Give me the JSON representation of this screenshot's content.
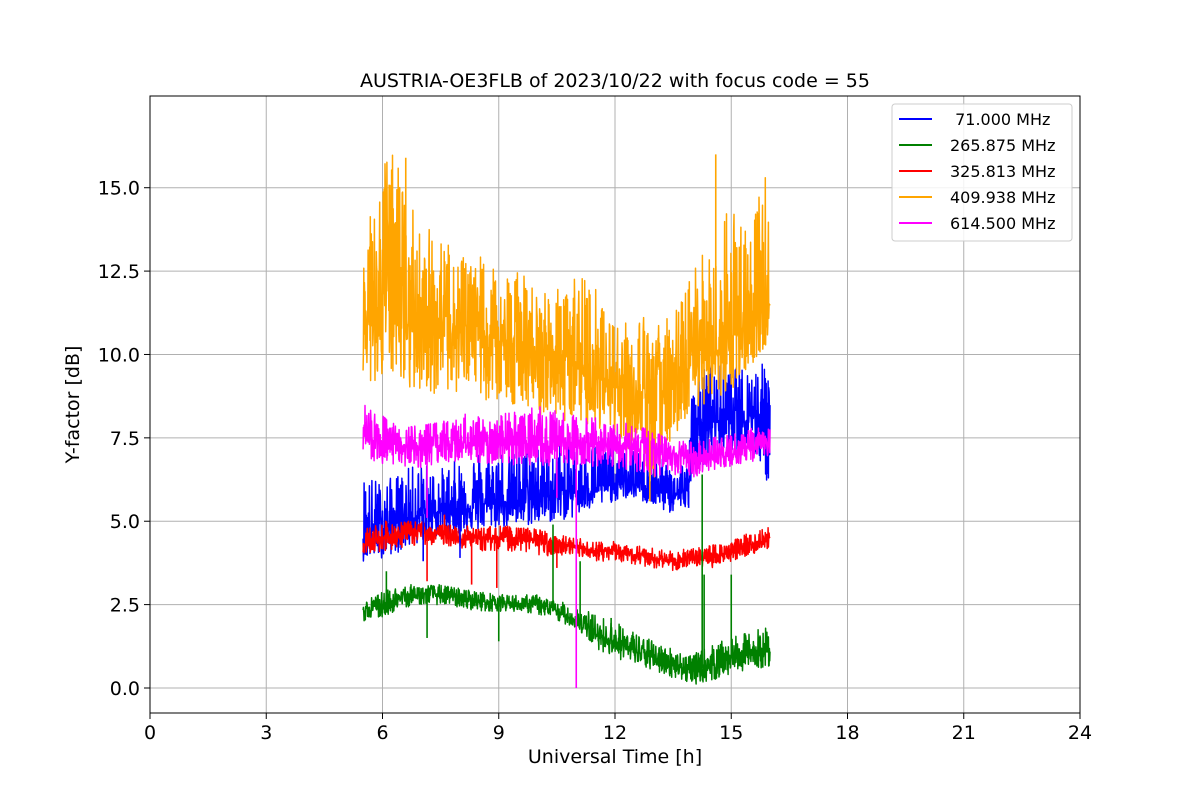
{
  "chart_data": {
    "type": "line",
    "title": "AUSTRIA-OE3FLB of 2023/10/22 with focus code = 55",
    "xlabel": "Universal Time [h]",
    "ylabel": "Y-factor [dB]",
    "xlim": [
      0,
      24
    ],
    "ylim": [
      -0.75,
      17.75
    ],
    "x_ticks": [
      "0",
      "3",
      "6",
      "9",
      "12",
      "15",
      "18",
      "21",
      "24"
    ],
    "x_tick_values": [
      0,
      3,
      6,
      9,
      12,
      15,
      18,
      21,
      24
    ],
    "y_ticks": [
      "0.0",
      "2.5",
      "5.0",
      "7.5",
      "10.0",
      "12.5",
      "15.0"
    ],
    "y_tick_values": [
      0,
      2.5,
      5,
      7.5,
      10,
      12.5,
      15
    ],
    "grid": true,
    "legend_position": "top-right",
    "series": [
      {
        "name": " 71.000 MHz",
        "color": "#0000ff",
        "x": [
          5.5,
          6.0,
          6.5,
          7.0,
          7.5,
          8.0,
          8.5,
          9.0,
          9.5,
          10.0,
          10.5,
          11.0,
          11.5,
          12.0,
          12.5,
          13.0,
          13.5,
          13.9,
          14.0,
          14.5,
          15.0,
          15.5,
          16.0
        ],
        "y": [
          4.6,
          4.8,
          5.0,
          5.2,
          5.3,
          5.4,
          5.5,
          5.6,
          5.6,
          5.7,
          5.8,
          5.9,
          6.0,
          6.1,
          6.1,
          6.0,
          5.8,
          5.9,
          7.8,
          8.0,
          8.1,
          8.2,
          8.3
        ],
        "upper": [
          6.5,
          6.2,
          6.5,
          6.8,
          6.6,
          6.9,
          7.2,
          7.3,
          7.2,
          7.5,
          7.4,
          7.3,
          7.4,
          7.2,
          7.3,
          6.9,
          6.8,
          6.9,
          9.5,
          9.8,
          9.6,
          9.7,
          9.8
        ],
        "lower": [
          3.8,
          3.9,
          4.1,
          4.4,
          4.5,
          4.6,
          4.7,
          4.8,
          4.8,
          4.9,
          5.0,
          5.1,
          5.4,
          5.6,
          5.7,
          5.4,
          5.2,
          5.5,
          6.6,
          6.8,
          7.1,
          7.2,
          5.9
        ]
      },
      {
        "name": "265.875 MHz",
        "color": "#008000",
        "x": [
          5.5,
          6.0,
          6.5,
          7.0,
          7.5,
          8.0,
          8.5,
          9.0,
          9.5,
          10.0,
          10.5,
          11.0,
          11.5,
          12.0,
          12.5,
          13.0,
          13.5,
          14.0,
          14.5,
          15.0,
          15.5,
          16.0
        ],
        "y": [
          2.2,
          2.5,
          2.7,
          2.8,
          2.8,
          2.7,
          2.6,
          2.6,
          2.5,
          2.5,
          2.3,
          2.0,
          1.6,
          1.4,
          1.1,
          0.9,
          0.7,
          0.5,
          0.7,
          0.9,
          1.0,
          1.1
        ],
        "upper": [
          2.6,
          2.9,
          3.1,
          3.1,
          3.1,
          3.0,
          2.9,
          2.8,
          2.8,
          2.8,
          2.6,
          2.5,
          2.2,
          2.0,
          1.7,
          1.4,
          1.2,
          1.0,
          1.3,
          1.5,
          1.7,
          1.9
        ],
        "lower": [
          2.0,
          2.1,
          2.4,
          2.5,
          2.5,
          2.4,
          2.3,
          2.3,
          2.3,
          2.2,
          2.0,
          1.8,
          1.2,
          0.9,
          0.7,
          0.5,
          0.3,
          0.1,
          0.2,
          0.4,
          0.6,
          0.6
        ]
      },
      {
        "name": "325.813 MHz",
        "color": "#ff0000",
        "x": [
          5.5,
          6.0,
          6.5,
          7.0,
          7.5,
          8.0,
          8.5,
          9.0,
          9.5,
          10.0,
          10.5,
          11.0,
          11.5,
          12.0,
          12.5,
          13.0,
          13.5,
          14.0,
          14.5,
          15.0,
          15.5,
          16.0
        ],
        "y": [
          4.3,
          4.5,
          4.6,
          4.7,
          4.6,
          4.5,
          4.5,
          4.5,
          4.5,
          4.4,
          4.3,
          4.2,
          4.1,
          4.1,
          4.0,
          3.9,
          3.8,
          3.9,
          3.9,
          4.1,
          4.3,
          4.5
        ],
        "upper": [
          4.8,
          5.0,
          5.0,
          5.0,
          4.9,
          4.9,
          4.8,
          4.9,
          4.8,
          4.8,
          4.6,
          4.5,
          4.4,
          4.4,
          4.3,
          4.2,
          4.1,
          4.2,
          4.3,
          4.4,
          4.7,
          4.9
        ],
        "lower": [
          4.0,
          4.1,
          4.2,
          4.3,
          4.3,
          4.2,
          4.1,
          4.1,
          4.1,
          4.0,
          3.9,
          3.9,
          3.8,
          3.8,
          3.7,
          3.6,
          3.5,
          3.6,
          3.6,
          3.8,
          4.0,
          4.2
        ]
      },
      {
        "name": "409.938 MHz",
        "color": "#ffa500",
        "x": [
          5.5,
          6.0,
          6.3,
          6.5,
          7.0,
          7.5,
          8.0,
          8.5,
          9.0,
          9.5,
          10.0,
          10.5,
          11.0,
          11.5,
          12.0,
          12.5,
          13.0,
          13.5,
          14.0,
          14.5,
          15.0,
          15.5,
          16.0
        ],
        "y": [
          10.6,
          11.5,
          12.0,
          11.2,
          10.8,
          10.7,
          10.6,
          10.5,
          10.4,
          10.3,
          10.1,
          9.9,
          9.6,
          9.4,
          9.1,
          8.8,
          8.7,
          9.0,
          9.5,
          10.0,
          10.5,
          11.0,
          11.5
        ],
        "upper": [
          14.0,
          15.5,
          16.5,
          15.0,
          14.0,
          13.5,
          13.0,
          13.0,
          12.5,
          12.5,
          12.0,
          12.0,
          12.5,
          12.0,
          11.0,
          11.5,
          11.0,
          11.2,
          12.5,
          13.5,
          14.5,
          14.0,
          16.2
        ],
        "lower": [
          9.0,
          9.2,
          9.4,
          9.1,
          8.9,
          8.8,
          8.7,
          8.6,
          8.5,
          8.5,
          8.2,
          8.0,
          7.8,
          7.8,
          7.5,
          6.6,
          6.0,
          7.2,
          8.0,
          8.4,
          9.0,
          9.5,
          10.5
        ]
      },
      {
        "name": "614.500 MHz",
        "color": "#ff00ff",
        "x": [
          5.5,
          6.0,
          6.5,
          7.0,
          7.5,
          8.0,
          8.5,
          9.0,
          9.5,
          10.0,
          10.5,
          11.0,
          11.5,
          12.0,
          12.5,
          13.0,
          13.5,
          14.0,
          14.5,
          15.0,
          15.5,
          16.0
        ],
        "y": [
          7.6,
          7.4,
          7.2,
          7.2,
          7.3,
          7.3,
          7.3,
          7.3,
          7.3,
          7.3,
          7.4,
          7.4,
          7.3,
          7.3,
          7.2,
          7.1,
          7.0,
          6.9,
          7.0,
          7.1,
          7.2,
          7.4
        ],
        "upper": [
          8.6,
          8.2,
          7.9,
          7.9,
          8.0,
          8.2,
          8.3,
          8.2,
          8.4,
          8.5,
          8.4,
          8.2,
          8.1,
          8.0,
          7.9,
          7.7,
          7.4,
          7.4,
          7.6,
          7.6,
          7.8,
          7.8
        ],
        "lower": [
          6.9,
          6.7,
          6.6,
          6.6,
          6.7,
          6.8,
          6.7,
          6.7,
          6.6,
          6.6,
          6.7,
          6.7,
          6.6,
          6.6,
          6.5,
          6.3,
          6.4,
          6.3,
          6.5,
          6.6,
          6.7,
          7.0
        ]
      }
    ],
    "spikes": [
      {
        "series": 0,
        "x": 7.05,
        "y": 3.8
      },
      {
        "series": 0,
        "x": 8.0,
        "y": 3.9
      },
      {
        "series": 0,
        "x": 13.9,
        "y": 5.4
      },
      {
        "series": 1,
        "x": 6.1,
        "y": 3.5
      },
      {
        "series": 1,
        "x": 7.15,
        "y": 1.5
      },
      {
        "series": 1,
        "x": 9.0,
        "y": 1.4
      },
      {
        "series": 1,
        "x": 10.4,
        "y": 4.9
      },
      {
        "series": 1,
        "x": 11.1,
        "y": 3.8
      },
      {
        "series": 1,
        "x": 11.9,
        "y": 2.1
      },
      {
        "series": 1,
        "x": 14.25,
        "y": 6.4
      },
      {
        "series": 1,
        "x": 14.3,
        "y": 3.4
      },
      {
        "series": 1,
        "x": 15.0,
        "y": 3.4
      },
      {
        "series": 2,
        "x": 7.15,
        "y": 3.2
      },
      {
        "series": 2,
        "x": 7.6,
        "y": 5.2
      },
      {
        "series": 2,
        "x": 8.3,
        "y": 3.1
      },
      {
        "series": 2,
        "x": 8.95,
        "y": 3.0
      },
      {
        "series": 2,
        "x": 10.5,
        "y": 3.6
      },
      {
        "series": 3,
        "x": 6.6,
        "y": 15.9
      },
      {
        "series": 3,
        "x": 12.9,
        "y": 5.6
      },
      {
        "series": 3,
        "x": 14.6,
        "y": 16.0
      },
      {
        "series": 3,
        "x": 15.05,
        "y": 9.0
      },
      {
        "series": 4,
        "x": 7.15,
        "y": 5.1
      },
      {
        "series": 4,
        "x": 10.5,
        "y": 5.7
      },
      {
        "series": 4,
        "x": 11.0,
        "y": 0.0
      }
    ]
  }
}
